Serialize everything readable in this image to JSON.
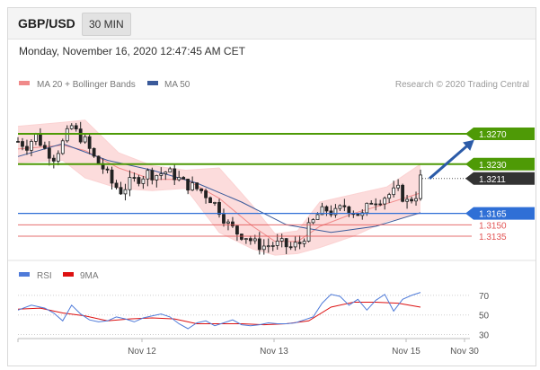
{
  "header": {
    "pair": "GBP/USD",
    "timeframe": "30 MIN",
    "datetime": "Monday, November 16, 2020 12:47:45 AM CET"
  },
  "legend": {
    "bollinger_label": "MA 20 + Bollinger Bands",
    "ma50_label": "MA 50",
    "credit": "Research © 2020 Trading Central",
    "rsi_label": "RSI",
    "ma9_label": "9MA"
  },
  "colors": {
    "bollinger": "#f08a8a",
    "bollinger_fill": "#fbd3d3",
    "ma50": "#3a5a9a",
    "resistance": "#4e9a06",
    "pivot": "#2f6fd6",
    "support": "#e25555",
    "last": "#333333",
    "arrow": "#2b5ba8",
    "rsi": "#4f7bd9",
    "rsi_ma": "#dd1111"
  },
  "chart_data": [
    {
      "type": "candlestick",
      "instrument": "GBP/USD",
      "interval": "30 MIN",
      "x_ticks": [
        "Nov 12",
        "Nov 13",
        "Nov 15",
        "Nov 30"
      ],
      "ylim": [
        1.3103,
        1.3315
      ],
      "levels": [
        {
          "value": 1.327,
          "label": "1.3270",
          "kind": "resistance"
        },
        {
          "value": 1.323,
          "label": "1.3230",
          "kind": "resistance"
        },
        {
          "value": 1.3211,
          "label": "1.3211",
          "kind": "last"
        },
        {
          "value": 1.3165,
          "label": "1.3165",
          "kind": "pivot"
        },
        {
          "value": 1.315,
          "label": "1.3150",
          "kind": "support"
        },
        {
          "value": 1.3135,
          "label": "1.3135",
          "kind": "support"
        }
      ],
      "close_path": [
        [
          0,
          1.326
        ],
        [
          4,
          1.3255
        ],
        [
          8,
          1.3268
        ],
        [
          12,
          1.325
        ],
        [
          16,
          1.324
        ],
        [
          20,
          1.3258
        ],
        [
          24,
          1.328
        ],
        [
          26,
          1.3272
        ],
        [
          30,
          1.326
        ],
        [
          34,
          1.3238
        ],
        [
          38,
          1.3225
        ],
        [
          42,
          1.3205
        ],
        [
          46,
          1.3195
        ],
        [
          50,
          1.3205
        ],
        [
          54,
          1.3212
        ],
        [
          58,
          1.3218
        ],
        [
          62,
          1.3216
        ],
        [
          66,
          1.322
        ],
        [
          70,
          1.3215
        ],
        [
          74,
          1.3205
        ],
        [
          78,
          1.32
        ],
        [
          82,
          1.3195
        ],
        [
          86,
          1.3185
        ],
        [
          90,
          1.317
        ],
        [
          94,
          1.315
        ],
        [
          98,
          1.314
        ],
        [
          102,
          1.3135
        ],
        [
          106,
          1.3125
        ],
        [
          110,
          1.3122
        ],
        [
          114,
          1.3124
        ],
        [
          118,
          1.3124
        ],
        [
          122,
          1.312
        ],
        [
          126,
          1.3126
        ],
        [
          130,
          1.3145
        ],
        [
          134,
          1.3163
        ],
        [
          138,
          1.317
        ],
        [
          142,
          1.3165
        ],
        [
          146,
          1.3175
        ],
        [
          150,
          1.3168
        ],
        [
          154,
          1.3162
        ],
        [
          158,
          1.3182
        ],
        [
          162,
          1.3185
        ],
        [
          166,
          1.319
        ],
        [
          170,
          1.3195
        ],
        [
          174,
          1.318
        ],
        [
          178,
          1.319
        ],
        [
          180,
          1.3211
        ]
      ],
      "ma20": [
        [
          0,
          1.325
        ],
        [
          20,
          1.3255
        ],
        [
          30,
          1.3248
        ],
        [
          45,
          1.3225
        ],
        [
          60,
          1.321
        ],
        [
          75,
          1.321
        ],
        [
          90,
          1.3185
        ],
        [
          105,
          1.3148
        ],
        [
          115,
          1.3128
        ],
        [
          125,
          1.3128
        ],
        [
          135,
          1.3148
        ],
        [
          150,
          1.3165
        ],
        [
          165,
          1.3178
        ],
        [
          180,
          1.3192
        ]
      ],
      "bb_upper": [
        [
          0,
          1.328
        ],
        [
          20,
          1.3285
        ],
        [
          30,
          1.3288
        ],
        [
          45,
          1.3245
        ],
        [
          60,
          1.3228
        ],
        [
          75,
          1.3222
        ],
        [
          90,
          1.3225
        ],
        [
          105,
          1.3175
        ],
        [
          115,
          1.3138
        ],
        [
          125,
          1.3142
        ],
        [
          135,
          1.318
        ],
        [
          150,
          1.319
        ],
        [
          165,
          1.32
        ],
        [
          180,
          1.323
        ]
      ],
      "bb_lower": [
        [
          0,
          1.3232
        ],
        [
          20,
          1.3235
        ],
        [
          30,
          1.3212
        ],
        [
          45,
          1.3198
        ],
        [
          60,
          1.3195
        ],
        [
          75,
          1.3198
        ],
        [
          90,
          1.314
        ],
        [
          105,
          1.3118
        ],
        [
          115,
          1.311
        ],
        [
          125,
          1.3112
        ],
        [
          135,
          1.312
        ],
        [
          150,
          1.3135
        ],
        [
          165,
          1.3155
        ],
        [
          180,
          1.3165
        ]
      ],
      "ma50": [
        [
          0,
          1.324
        ],
        [
          20,
          1.3257
        ],
        [
          40,
          1.3235
        ],
        [
          60,
          1.3222
        ],
        [
          80,
          1.3205
        ],
        [
          100,
          1.318
        ],
        [
          120,
          1.315
        ],
        [
          140,
          1.314
        ],
        [
          160,
          1.3148
        ],
        [
          180,
          1.3166
        ]
      ],
      "projection": {
        "from": [
          180,
          1.3211
        ],
        "to": [
          200,
          1.3262
        ]
      }
    },
    {
      "type": "line",
      "title": "RSI",
      "yticks": [
        70,
        50,
        30
      ],
      "ylim": [
        25,
        80
      ],
      "series": [
        {
          "name": "RSI",
          "values": [
            [
              0,
              55
            ],
            [
              6,
              60
            ],
            [
              12,
              57
            ],
            [
              16,
              52
            ],
            [
              20,
              44
            ],
            [
              24,
              60
            ],
            [
              28,
              51
            ],
            [
              32,
              45
            ],
            [
              36,
              43
            ],
            [
              40,
              44
            ],
            [
              44,
              48
            ],
            [
              48,
              46
            ],
            [
              52,
              43
            ],
            [
              56,
              47
            ],
            [
              60,
              49
            ],
            [
              64,
              51
            ],
            [
              68,
              48
            ],
            [
              72,
              41
            ],
            [
              76,
              36
            ],
            [
              80,
              42
            ],
            [
              84,
              44
            ],
            [
              88,
              39
            ],
            [
              92,
              42
            ],
            [
              96,
              45
            ],
            [
              100,
              40
            ],
            [
              104,
              39
            ],
            [
              108,
              40
            ],
            [
              112,
              42
            ],
            [
              116,
              41
            ],
            [
              120,
              41
            ],
            [
              124,
              42
            ],
            [
              128,
              45
            ],
            [
              132,
              48
            ],
            [
              136,
              62
            ],
            [
              140,
              71
            ],
            [
              144,
              69
            ],
            [
              148,
              60
            ],
            [
              152,
              66
            ],
            [
              156,
              55
            ],
            [
              160,
              65
            ],
            [
              164,
              71
            ],
            [
              168,
              54
            ],
            [
              172,
              66
            ],
            [
              176,
              70
            ],
            [
              180,
              73
            ]
          ]
        },
        {
          "name": "9MA",
          "values": [
            [
              0,
              56
            ],
            [
              10,
              57
            ],
            [
              20,
              52
            ],
            [
              30,
              49
            ],
            [
              40,
              44
            ],
            [
              50,
              46
            ],
            [
              60,
              47
            ],
            [
              70,
              46
            ],
            [
              80,
              41
            ],
            [
              90,
              41
            ],
            [
              100,
              41
            ],
            [
              110,
              40
            ],
            [
              120,
              41
            ],
            [
              130,
              44
            ],
            [
              140,
              58
            ],
            [
              150,
              63
            ],
            [
              160,
              63
            ],
            [
              170,
              62
            ],
            [
              180,
              58
            ]
          ]
        }
      ]
    }
  ]
}
